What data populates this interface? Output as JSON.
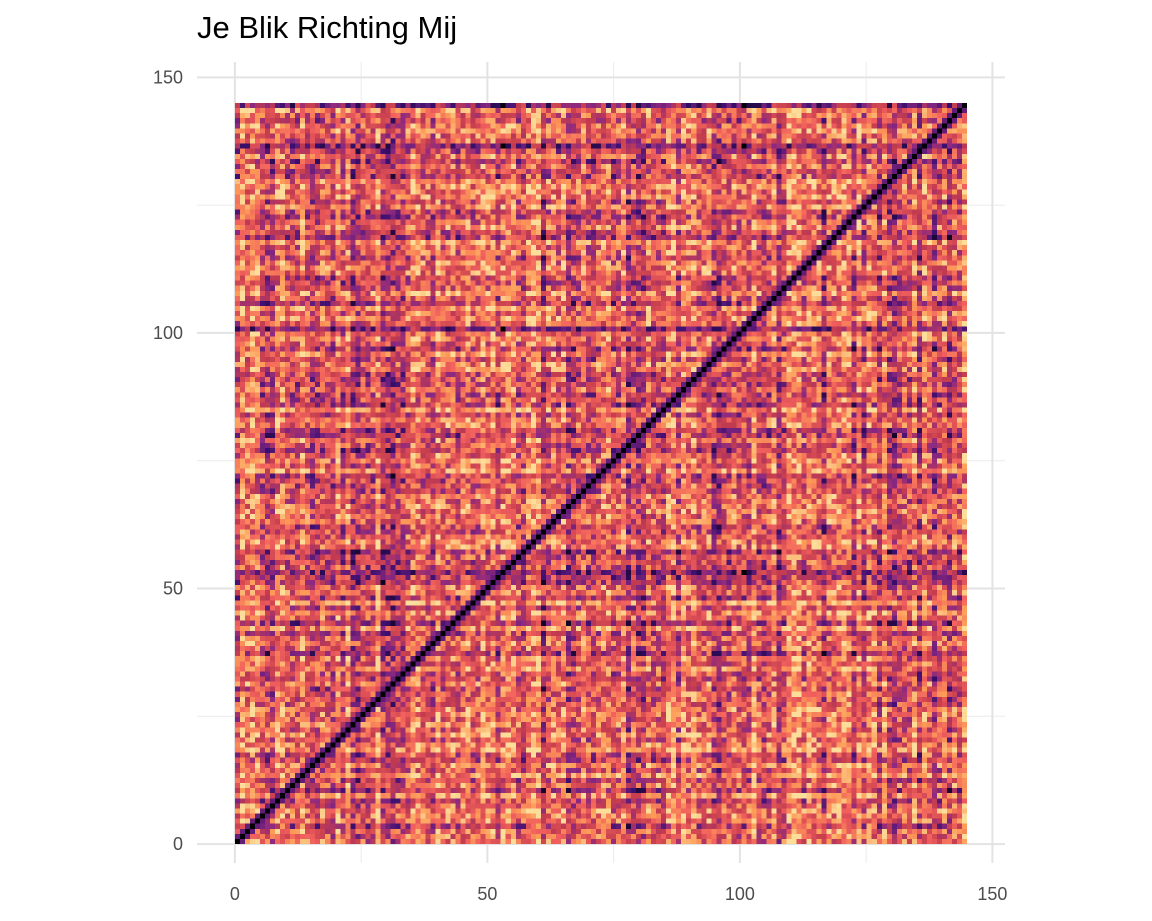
{
  "chart_data": {
    "type": "heatmap",
    "title": "Je Blik Richting Mij",
    "xlabel": "",
    "ylabel": "",
    "xlim": [
      -7.5,
      152.5
    ],
    "ylim": [
      -3.7,
      153
    ],
    "x_ticks": [
      "0",
      "50",
      "100",
      "150"
    ],
    "y_ticks": [
      "0",
      "50",
      "100",
      "150"
    ],
    "grid": true,
    "legend": "none",
    "matrix_size": [
      146,
      146
    ],
    "x_range": [
      0,
      145
    ],
    "y_range": [
      0,
      145
    ],
    "diagonal": "black (self-similarity)",
    "highlighted_rows": [
      53,
      101,
      137,
      145
    ],
    "highlighted_cols": [
      53,
      101
    ],
    "colormap": [
      "#000004",
      "#3b0f70",
      "#8c2981",
      "#c43c4e",
      "#f1605d",
      "#fd9b58",
      "#fcdd9a"
    ]
  }
}
